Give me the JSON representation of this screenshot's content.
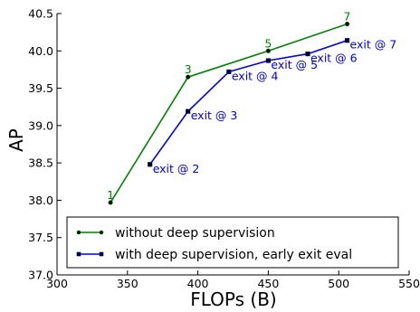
{
  "chart_data": {
    "type": "line",
    "title": "",
    "xlabel": "FLOPs (B)",
    "ylabel": "AP",
    "xlim": [
      300,
      550
    ],
    "ylim": [
      37.0,
      40.5
    ],
    "xticks": [
      300,
      350,
      400,
      450,
      500,
      550
    ],
    "yticks": [
      37.0,
      37.5,
      38.0,
      38.5,
      39.0,
      39.5,
      40.0,
      40.5
    ],
    "grid": false,
    "legend_position": "bottom-right",
    "series": [
      {
        "name": "without deep supervision",
        "color": "#008000",
        "marker": "circle",
        "points": [
          {
            "x": 338,
            "y": 37.97,
            "label": "1"
          },
          {
            "x": 393,
            "y": 39.65,
            "label": "3"
          },
          {
            "x": 450,
            "y": 40.0,
            "label": "5"
          },
          {
            "x": 506,
            "y": 40.36,
            "label": "7"
          }
        ]
      },
      {
        "name": "with deep supervision, early exit eval",
        "color": "#0000dd",
        "marker": "square",
        "points": [
          {
            "x": 366,
            "y": 38.48,
            "label": "exit @ 2"
          },
          {
            "x": 393,
            "y": 39.19,
            "label": "exit @ 3"
          },
          {
            "x": 422,
            "y": 39.72,
            "label": "exit @ 4"
          },
          {
            "x": 450,
            "y": 39.87,
            "label": "exit @ 5"
          },
          {
            "x": 478,
            "y": 39.96,
            "label": "exit @ 6"
          },
          {
            "x": 506,
            "y": 40.14,
            "label": "exit @ 7"
          }
        ]
      }
    ]
  }
}
